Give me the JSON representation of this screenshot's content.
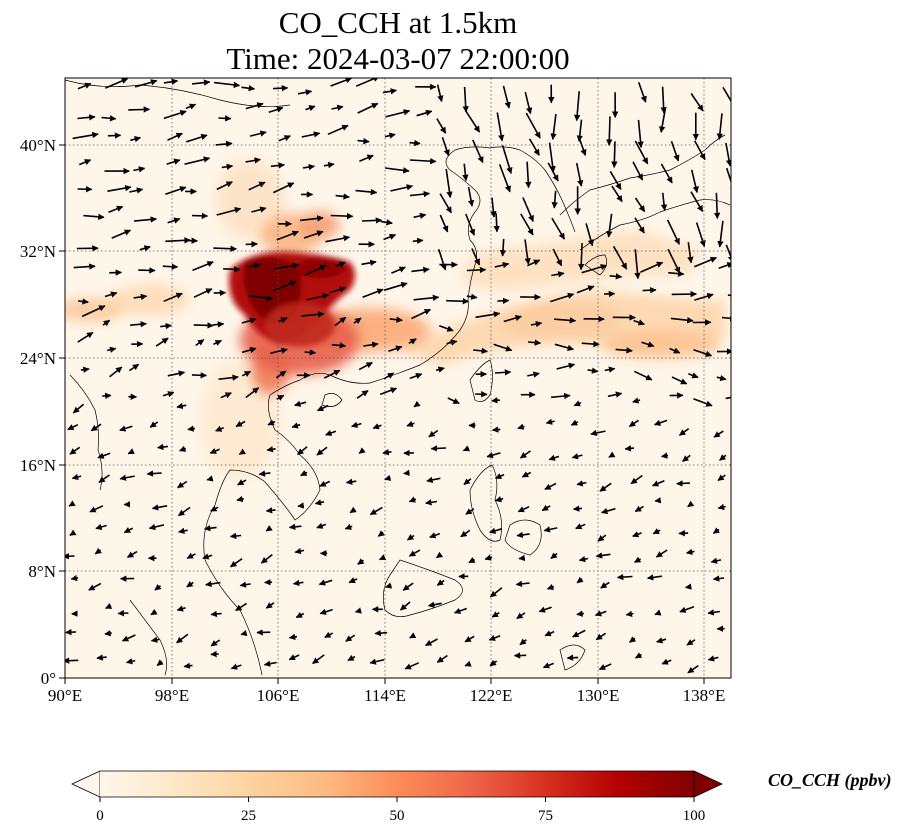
{
  "title": {
    "line1": "CO_CCH at 1.5km",
    "line2": "Time: 2024-03-07 22:00:00"
  },
  "map": {
    "lon_range": [
      90,
      140
    ],
    "lat_range": [
      0,
      45
    ],
    "x_ticks": [
      "90°E",
      "98°E",
      "106°E",
      "114°E",
      "122°E",
      "130°E",
      "138°E"
    ],
    "y_ticks": [
      "0°",
      "8°N",
      "16°N",
      "24°N",
      "32°N",
      "40°N"
    ],
    "gridlines": true,
    "wind_vectors": true,
    "coastlines": true
  },
  "colorbar": {
    "label": "CO_CCH (ppbv)",
    "ticks": [
      "0",
      "25",
      "50",
      "75",
      "100"
    ],
    "range": [
      0,
      100
    ],
    "colormap": "OrRd",
    "colors": [
      "#fff7ec",
      "#fee8c8",
      "#fdd49e",
      "#fdbb84",
      "#fc8d59",
      "#ef6548",
      "#d7301f",
      "#b30000",
      "#7f0000"
    ],
    "extend": "both"
  }
}
